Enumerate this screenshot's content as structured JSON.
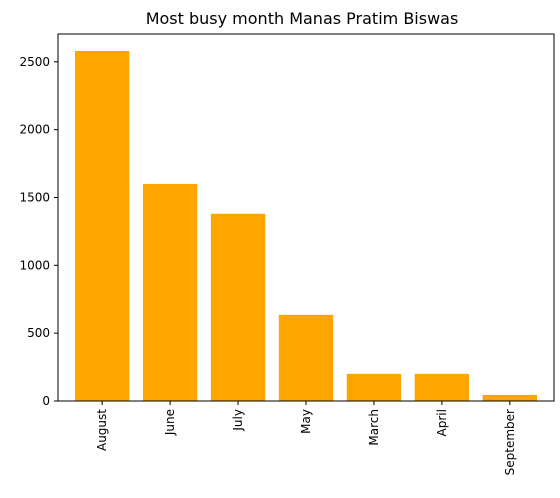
{
  "chart_data": {
    "type": "bar",
    "title": "Most busy month Manas Pratim Biswas",
    "xlabel": "",
    "ylabel": "",
    "categories": [
      "August",
      "June",
      "July",
      "May",
      "March",
      "April",
      "September"
    ],
    "values": [
      2580,
      1600,
      1380,
      635,
      200,
      200,
      45
    ],
    "ylim": [
      0,
      2705
    ],
    "yticks": [
      0,
      500,
      1000,
      1500,
      2000,
      2500
    ],
    "bar_color": "#FFA500",
    "grid": false,
    "legend": "none"
  }
}
